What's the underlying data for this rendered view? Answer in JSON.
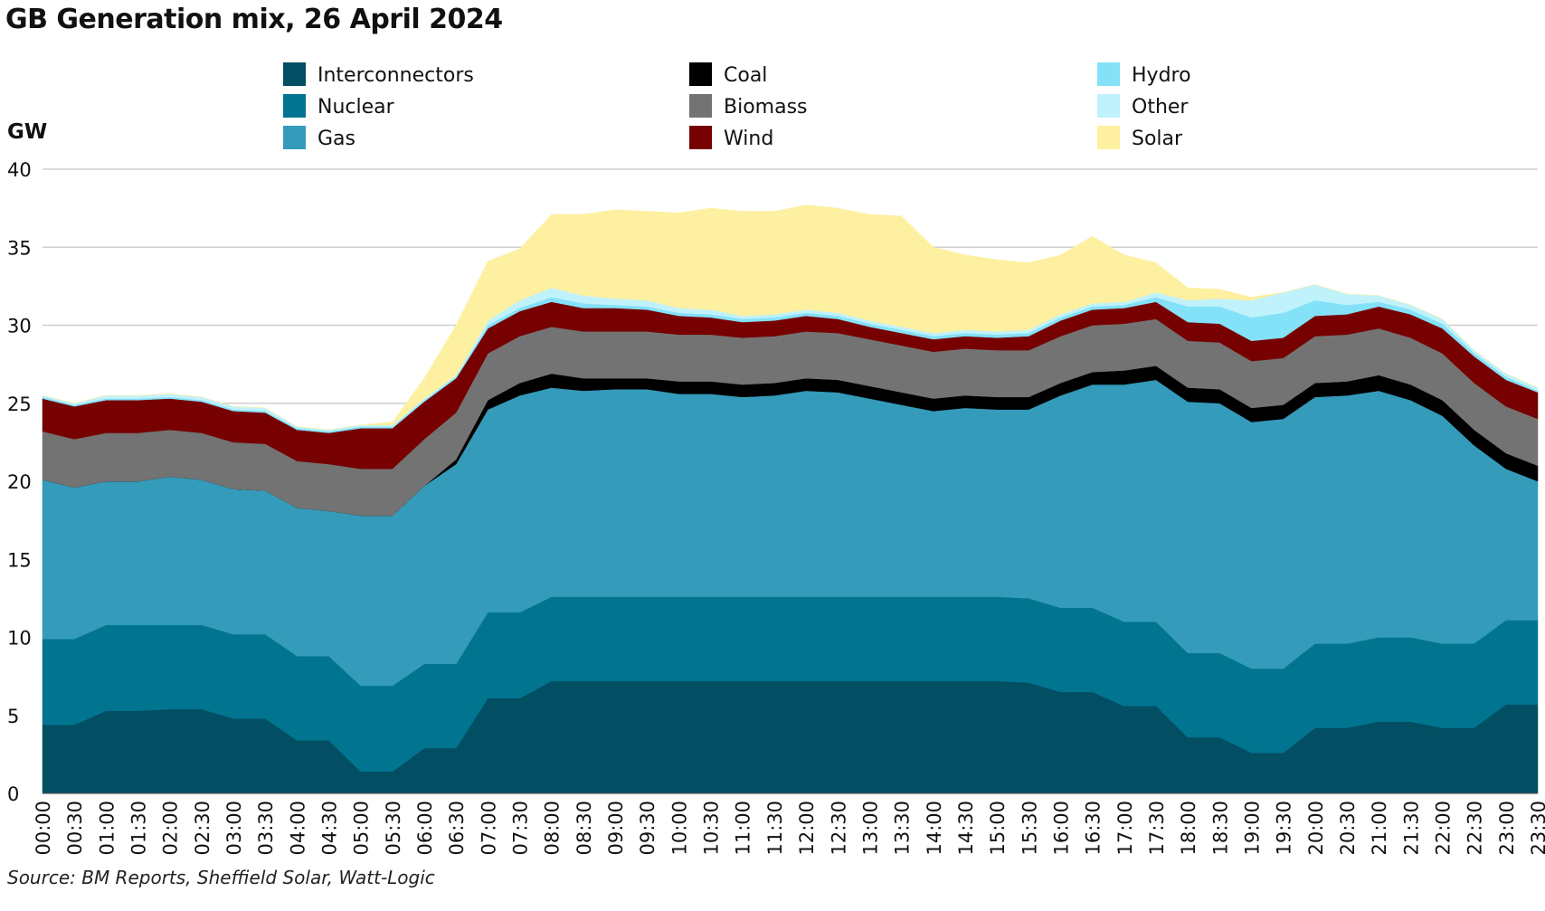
{
  "title": "GB Generation mix, 26 April 2024",
  "source": "Source: BM Reports, Sheffield Solar, Watt-Logic",
  "chart_data": {
    "type": "area",
    "stacked": true,
    "title": "GB Generation mix, 26 April 2024",
    "ylabel": "GW",
    "ylim": [
      0,
      40
    ],
    "yticks": [
      0,
      5,
      10,
      15,
      20,
      25,
      30,
      35,
      40
    ],
    "grid": true,
    "legend_position": "top",
    "x": [
      "00:00",
      "00:30",
      "01:00",
      "01:30",
      "02:00",
      "02:30",
      "03:00",
      "03:30",
      "04:00",
      "04:30",
      "05:00",
      "05:30",
      "06:00",
      "06:30",
      "07:00",
      "07:30",
      "08:00",
      "08:30",
      "09:00",
      "09:30",
      "10:00",
      "10:30",
      "11:00",
      "11:30",
      "12:00",
      "12:30",
      "13:00",
      "13:30",
      "14:00",
      "14:30",
      "15:00",
      "15:30",
      "16:00",
      "16:30",
      "17:00",
      "17:30",
      "18:00",
      "18:30",
      "19:00",
      "19:30",
      "20:00",
      "20:30",
      "21:00",
      "21:30",
      "22:00",
      "22:30",
      "23:00",
      "23:30"
    ],
    "series": [
      {
        "name": "Interconnectors",
        "color": "#024e62",
        "values": [
          4.4,
          4.4,
          5.3,
          5.3,
          5.4,
          5.4,
          4.8,
          4.8,
          3.4,
          3.4,
          1.4,
          1.4,
          2.9,
          2.9,
          6.1,
          6.1,
          7.2,
          7.2,
          7.2,
          7.2,
          7.2,
          7.2,
          7.2,
          7.2,
          7.2,
          7.2,
          7.2,
          7.2,
          7.2,
          7.2,
          7.2,
          7.1,
          6.5,
          6.5,
          5.6,
          5.6,
          3.6,
          3.6,
          2.6,
          2.6,
          4.2,
          4.2,
          4.6,
          4.6,
          4.2,
          4.2,
          5.7,
          5.7
        ]
      },
      {
        "name": "Nuclear",
        "color": "#017590",
        "values": [
          5.5,
          5.5,
          5.5,
          5.5,
          5.4,
          5.4,
          5.4,
          5.4,
          5.4,
          5.4,
          5.5,
          5.5,
          5.4,
          5.4,
          5.5,
          5.5,
          5.4,
          5.4,
          5.4,
          5.4,
          5.4,
          5.4,
          5.4,
          5.4,
          5.4,
          5.4,
          5.4,
          5.4,
          5.4,
          5.4,
          5.4,
          5.4,
          5.4,
          5.4,
          5.4,
          5.4,
          5.4,
          5.4,
          5.4,
          5.4,
          5.4,
          5.4,
          5.4,
          5.4,
          5.4,
          5.4,
          5.4,
          5.4
        ]
      },
      {
        "name": "Gas",
        "color": "#349bba",
        "values": [
          10.2,
          9.7,
          9.2,
          9.2,
          9.5,
          9.3,
          9.3,
          9.2,
          9.5,
          9.3,
          10.9,
          10.9,
          11.4,
          12.8,
          13.0,
          13.9,
          13.4,
          13.2,
          13.3,
          13.3,
          13.0,
          13.0,
          12.8,
          12.9,
          13.2,
          13.1,
          12.7,
          12.3,
          11.9,
          12.1,
          12.0,
          12.1,
          13.6,
          14.3,
          15.2,
          15.5,
          16.1,
          16.0,
          15.8,
          16.0,
          15.8,
          15.9,
          15.8,
          15.2,
          14.6,
          12.7,
          9.7,
          8.9
        ]
      },
      {
        "name": "Coal",
        "color": "#000000",
        "values": [
          0,
          0,
          0,
          0,
          0,
          0,
          0,
          0,
          0,
          0,
          0,
          0,
          0,
          0.3,
          0.6,
          0.8,
          0.9,
          0.8,
          0.7,
          0.7,
          0.8,
          0.8,
          0.8,
          0.8,
          0.8,
          0.8,
          0.8,
          0.8,
          0.8,
          0.8,
          0.8,
          0.8,
          0.8,
          0.8,
          0.9,
          0.9,
          0.9,
          0.9,
          0.9,
          0.9,
          0.9,
          0.9,
          1.0,
          1.0,
          1.0,
          1.0,
          1.0,
          1.0
        ]
      },
      {
        "name": "Biomass",
        "color": "#737373",
        "values": [
          3.1,
          3.1,
          3.1,
          3.1,
          3.0,
          3.0,
          3.0,
          3.0,
          3.0,
          3.0,
          3.0,
          3.0,
          3.0,
          3.0,
          3.0,
          3.0,
          3.0,
          3.0,
          3.0,
          3.0,
          3.0,
          3.0,
          3.0,
          3.0,
          3.0,
          3.0,
          3.0,
          3.0,
          3.0,
          3.0,
          3.0,
          3.0,
          3.0,
          3.0,
          3.0,
          3.0,
          3.0,
          3.0,
          3.0,
          3.0,
          3.0,
          3.0,
          3.0,
          3.0,
          3.0,
          3.0,
          3.0,
          3.0
        ]
      },
      {
        "name": "Wind",
        "color": "#770000",
        "values": [
          2.1,
          2.1,
          2.1,
          2.1,
          2.0,
          2.0,
          2.0,
          2.0,
          2.0,
          2.0,
          2.6,
          2.6,
          2.4,
          2.2,
          1.6,
          1.6,
          1.6,
          1.5,
          1.5,
          1.4,
          1.2,
          1.1,
          1.0,
          1.0,
          1.0,
          0.9,
          0.8,
          0.8,
          0.8,
          0.8,
          0.8,
          0.9,
          1.0,
          1.0,
          1.0,
          1.1,
          1.2,
          1.2,
          1.3,
          1.3,
          1.3,
          1.3,
          1.4,
          1.5,
          1.6,
          1.7,
          1.7,
          1.7
        ]
      },
      {
        "name": "Hydro",
        "color": "#83e1f8",
        "values": [
          0.1,
          0.1,
          0.1,
          0.1,
          0.1,
          0.1,
          0.1,
          0.1,
          0.1,
          0.1,
          0.1,
          0.1,
          0.1,
          0.1,
          0.2,
          0.2,
          0.3,
          0.3,
          0.2,
          0.2,
          0.2,
          0.2,
          0.2,
          0.2,
          0.2,
          0.2,
          0.2,
          0.2,
          0.2,
          0.2,
          0.2,
          0.2,
          0.2,
          0.2,
          0.2,
          0.3,
          1.0,
          1.1,
          1.5,
          1.6,
          1.0,
          0.6,
          0.3,
          0.3,
          0.3,
          0.2,
          0.2,
          0.1
        ]
      },
      {
        "name": "Other",
        "color": "#c0f2fc",
        "values": [
          0.1,
          0.1,
          0.2,
          0.2,
          0.2,
          0.2,
          0.2,
          0.2,
          0.1,
          0.1,
          0.1,
          0.1,
          0.1,
          0.1,
          0.3,
          0.5,
          0.6,
          0.5,
          0.4,
          0.4,
          0.3,
          0.3,
          0.2,
          0.2,
          0.2,
          0.2,
          0.2,
          0.2,
          0.2,
          0.2,
          0.2,
          0.2,
          0.2,
          0.2,
          0.2,
          0.3,
          0.4,
          0.5,
          1.1,
          1.3,
          1.0,
          0.7,
          0.4,
          0.3,
          0.3,
          0.2,
          0.2,
          0.2
        ]
      },
      {
        "name": "Solar",
        "color": "#fdf0a0",
        "values": [
          0,
          0,
          0,
          0,
          0,
          0,
          0,
          0,
          0,
          0,
          0,
          0.2,
          1.3,
          3.2,
          3.8,
          3.3,
          4.7,
          5.2,
          5.7,
          5.7,
          6.1,
          6.5,
          6.7,
          6.6,
          6.7,
          6.7,
          6.8,
          7.1,
          5.5,
          4.8,
          4.6,
          4.3,
          3.8,
          4.3,
          3.0,
          1.9,
          0.8,
          0.6,
          0.2,
          0,
          0,
          0,
          0,
          0,
          0,
          0,
          0,
          0
        ]
      }
    ]
  }
}
